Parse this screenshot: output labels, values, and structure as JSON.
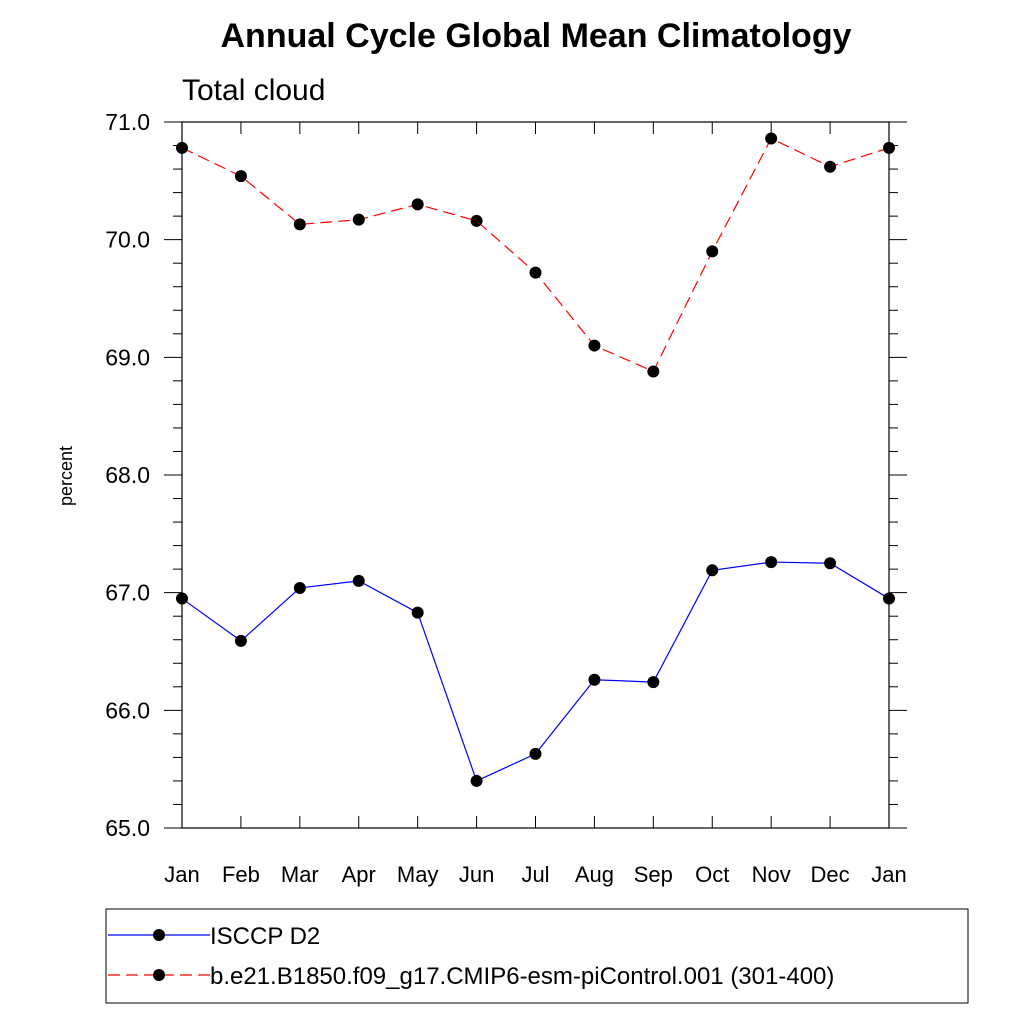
{
  "chart_data": {
    "type": "line",
    "title": "Annual Cycle Global Mean Climatology",
    "subtitle": "Total cloud",
    "ylabel": "percent",
    "xlabel": "",
    "categories": [
      "Jan",
      "Feb",
      "Mar",
      "Apr",
      "May",
      "Jun",
      "Jul",
      "Aug",
      "Sep",
      "Oct",
      "Nov",
      "Dec",
      "Jan"
    ],
    "ylim": [
      65.0,
      71.0
    ],
    "yticks": [
      "65.0",
      "66.0",
      "67.0",
      "68.0",
      "69.0",
      "70.0",
      "71.0"
    ],
    "grid": false,
    "legend_position": "bottom",
    "series": [
      {
        "name": "ISCCP D2",
        "color": "#0000ff",
        "line_style": "solid",
        "marker": "filled-circle",
        "values": [
          66.95,
          66.59,
          67.04,
          67.1,
          66.83,
          65.4,
          65.63,
          66.26,
          66.24,
          67.19,
          67.26,
          67.25,
          66.95
        ]
      },
      {
        "name": "b.e21.B1850.f09_g17.CMIP6-esm-piControl.001 (301-400)",
        "color": "#ff0000",
        "line_style": "dashed",
        "marker": "filled-circle",
        "values": [
          70.78,
          70.54,
          70.13,
          70.17,
          70.3,
          70.16,
          69.72,
          69.1,
          68.88,
          69.9,
          70.86,
          70.62,
          70.78
        ]
      }
    ]
  }
}
